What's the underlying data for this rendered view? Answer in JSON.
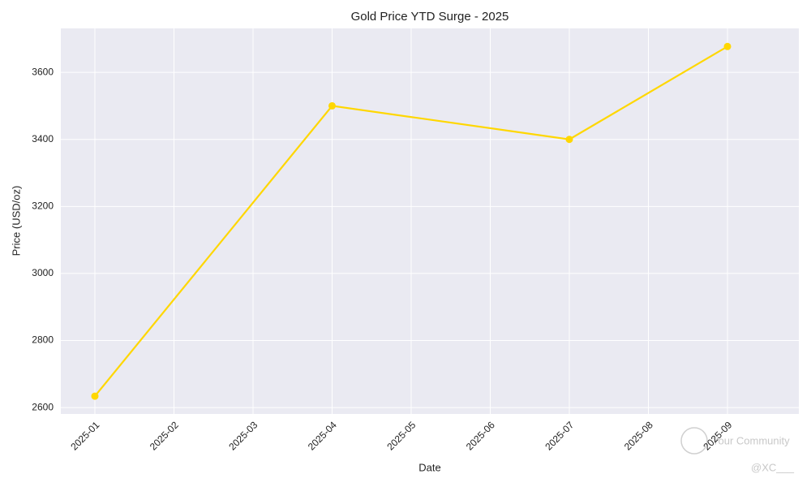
{
  "chart_data": {
    "type": "line",
    "title": "Gold Price YTD Surge - 2025",
    "x_label": "Date",
    "y_label": "Price (USD/oz)",
    "x": [
      "2025-01",
      "2025-04",
      "2025-07",
      "2025-09"
    ],
    "series": [
      {
        "name": "Gold",
        "color": "#FFD700",
        "values": [
          2634,
          3500,
          3400,
          3677
        ]
      }
    ],
    "xticks": [
      "2025-01",
      "2025-02",
      "2025-03",
      "2025-04",
      "2025-05",
      "2025-06",
      "2025-07",
      "2025-08",
      "2025-09"
    ],
    "ylim": [
      2581,
      3731
    ],
    "yticks": [
      2600,
      2800,
      3000,
      3200,
      3400,
      3600
    ],
    "grid": true,
    "watermark": [
      "Your Community",
      "@XC___"
    ]
  }
}
